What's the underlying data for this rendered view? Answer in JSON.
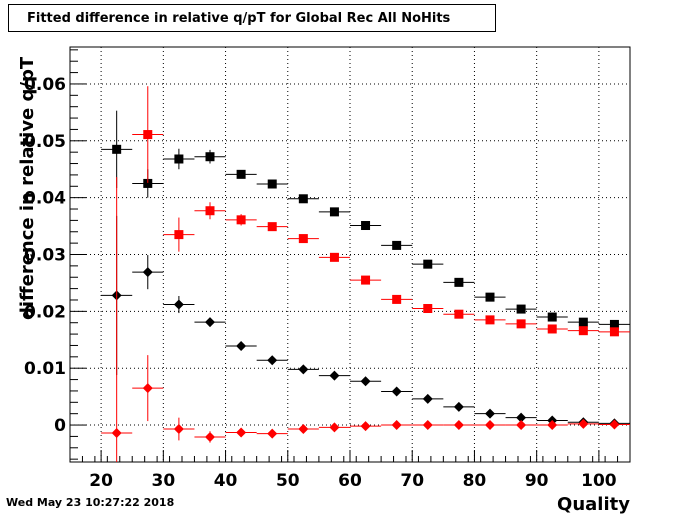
{
  "chart_data": {
    "type": "scatter",
    "title": "Fitted difference in relative q/pT  for Global Rec All NoHits",
    "xlabel": "Quality",
    "ylabel": "difference in relative q/pT",
    "xlim": [
      15,
      105
    ],
    "ylim": [
      -0.0065,
      0.0665
    ],
    "x_ticks": [
      20,
      30,
      40,
      50,
      60,
      70,
      80,
      90,
      100
    ],
    "y_ticks": [
      0,
      0.01,
      0.02,
      0.03,
      0.04,
      0.05,
      0.06
    ],
    "y_tick_labels": [
      "0",
      "0.01",
      "0.02",
      "0.03",
      "0.04",
      "0.05",
      "0.06"
    ],
    "grid": true,
    "colors": {
      "black": "#000000",
      "red": "#ff0000"
    },
    "x": [
      22.5,
      27.5,
      32.5,
      37.5,
      42.5,
      47.5,
      52.5,
      57.5,
      62.5,
      67.5,
      72.5,
      77.5,
      82.5,
      87.5,
      92.5,
      97.5,
      102.5
    ],
    "x_half_width": 2.5,
    "series": [
      {
        "marker": "square",
        "color": "#000000",
        "values": [
          0.0485,
          0.0425,
          0.0468,
          0.0472,
          0.0441,
          0.0424,
          0.0398,
          0.0375,
          0.0351,
          0.0316,
          0.0283,
          0.0251,
          0.0225,
          0.0204,
          0.019,
          0.0181,
          0.0177
        ],
        "errors": [
          0.0068,
          0.0025,
          0.0018,
          0.0012,
          0.0007,
          0.0005,
          0.0004,
          0.0003,
          0.0003,
          0.0003,
          0.0002,
          0.0002,
          0.0002,
          0.0002,
          0.0002,
          0.0002,
          0.0002
        ]
      },
      {
        "marker": "square",
        "color": "#ff0000",
        "values": [
          null,
          0.0511,
          0.0335,
          0.0377,
          0.0361,
          0.0349,
          0.0328,
          0.0295,
          0.0255,
          0.0221,
          0.0205,
          0.0195,
          0.0185,
          0.0178,
          0.0169,
          0.0166,
          0.0164
        ],
        "errors": [
          null,
          0.0085,
          0.003,
          0.0015,
          0.001,
          0.0006,
          0.0005,
          0.0004,
          0.0003,
          0.0003,
          0.0002,
          0.0002,
          0.0002,
          0.0002,
          0.0002,
          0.0002,
          0.0002
        ]
      },
      {
        "marker": "diamond",
        "color": "#000000",
        "values": [
          0.0228,
          0.0269,
          0.0212,
          0.0181,
          0.0139,
          0.0114,
          0.0098,
          0.0087,
          0.0077,
          0.0059,
          0.0046,
          0.0032,
          0.002,
          0.0013,
          0.0008,
          0.0005,
          0.0003
        ],
        "errors": [
          0.014,
          0.003,
          0.0015,
          0.0008,
          0.0005,
          0.0004,
          0.0003,
          0.0003,
          0.0003,
          0.0003,
          0.0002,
          0.0002,
          0.0002,
          0.0002,
          0.0002,
          0.0002,
          0.0002
        ]
      },
      {
        "marker": "diamond",
        "color": "#ff0000",
        "values": [
          -0.0014,
          0.0065,
          -0.0007,
          -0.0021,
          -0.0013,
          -0.0015,
          -0.0007,
          -0.0004,
          -0.0002,
          0.0,
          0.0,
          0.0,
          0.0,
          0.0,
          0.0,
          0.0002,
          0.0001
        ],
        "errors": [
          0.045,
          0.0058,
          0.002,
          0.001,
          0.0006,
          0.0005,
          0.0004,
          0.0003,
          0.0003,
          0.0002,
          0.0002,
          0.0002,
          0.0002,
          0.0002,
          0.0002,
          0.0002,
          0.0002
        ]
      }
    ]
  },
  "footer": {
    "date": "Wed May 23 10:27:22 2018"
  }
}
